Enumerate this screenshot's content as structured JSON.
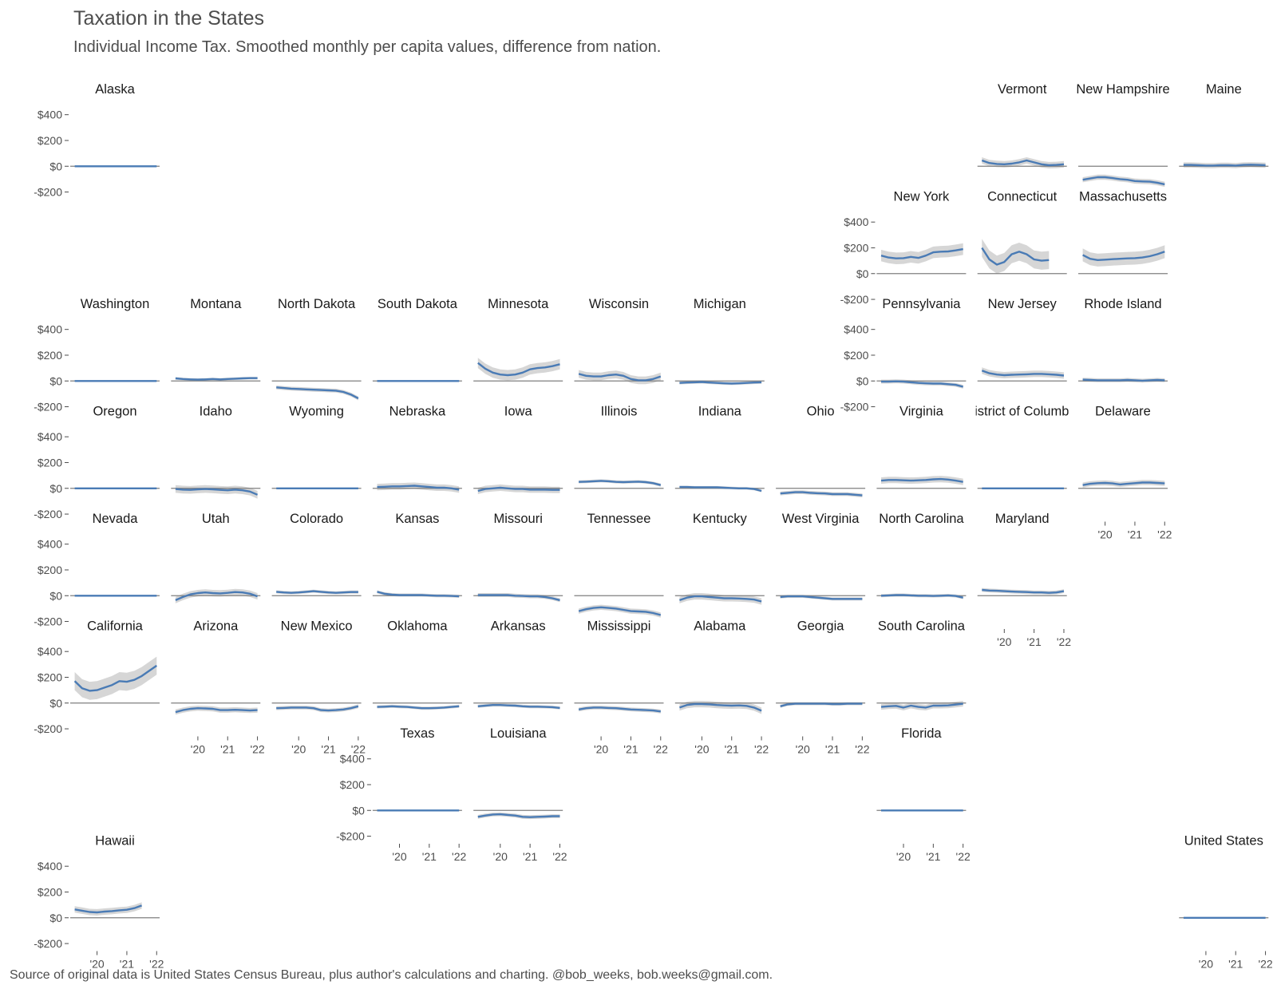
{
  "title": "Taxation in the States",
  "subtitle": "Individual Income Tax. Smoothed monthly per capita values, difference from nation.",
  "caption": "Source of original data is United States Census Bureau, plus author's calculations and charting. @bob_weeks, bob.weeks@gmail.com.",
  "colors": {
    "line": "#4a7bb5",
    "ribbon": "#cfcfcf",
    "zero": "#7f7f7f",
    "text": "#4d4d4d"
  },
  "chart_data": {
    "type": "line",
    "layout": "state-grid small multiples",
    "y_ticks": [
      400,
      200,
      0,
      -200
    ],
    "y_tick_labels": [
      "$400",
      "$200",
      "$0",
      "-$200"
    ],
    "ylim": [
      -240,
      460
    ],
    "x_ticks": [
      2020,
      2021,
      2022
    ],
    "x_tick_labels": [
      "'20",
      "'21",
      "'22"
    ],
    "xlim": [
      2019.1,
      2022.1
    ],
    "x": [
      2019.25,
      2019.5,
      2019.75,
      2020,
      2020.25,
      2020.5,
      2020.75,
      2021,
      2021.25,
      2021.5,
      2021.75,
      2022
    ],
    "series": [
      {
        "name": "Alaska",
        "row": 0,
        "col": 0,
        "y_axis": true,
        "x_axis": false,
        "values": [
          0,
          0,
          0,
          0,
          0,
          0,
          0,
          0,
          0,
          0,
          0,
          0
        ],
        "band": 0
      },
      {
        "name": "Vermont",
        "row": 0,
        "col": 9,
        "y_axis": false,
        "x_axis": false,
        "values": [
          45,
          25,
          18,
          15,
          20,
          30,
          45,
          30,
          15,
          8,
          10,
          15
        ],
        "band": 25
      },
      {
        "name": "New Hampshire",
        "row": 0,
        "col": 10,
        "y_axis": false,
        "x_axis": false,
        "values": [
          -105,
          -95,
          -85,
          -85,
          -92,
          -100,
          -105,
          -115,
          -118,
          -120,
          -128,
          -140
        ],
        "band": 20
      },
      {
        "name": "Maine",
        "row": 0,
        "col": 11,
        "y_axis": false,
        "x_axis": false,
        "values": [
          10,
          10,
          8,
          5,
          5,
          8,
          8,
          5,
          10,
          12,
          10,
          8
        ],
        "band": 20
      },
      {
        "name": "New York",
        "row": 1,
        "col": 8,
        "y_axis": true,
        "x_axis": false,
        "values": [
          140,
          125,
          118,
          120,
          130,
          122,
          140,
          165,
          170,
          172,
          180,
          190
        ],
        "band": 45
      },
      {
        "name": "Connecticut",
        "row": 1,
        "col": 9,
        "y_axis": false,
        "x_axis": false,
        "values": [
          200,
          110,
          70,
          90,
          150,
          170,
          150,
          110,
          100,
          105,
          null,
          null
        ],
        "band": 70
      },
      {
        "name": "Massachusetts",
        "row": 1,
        "col": 10,
        "y_axis": false,
        "x_axis": false,
        "values": [
          145,
          115,
          105,
          108,
          112,
          115,
          118,
          120,
          125,
          135,
          150,
          170
        ],
        "band": 50
      },
      {
        "name": "Washington",
        "row": 2,
        "col": 0,
        "y_axis": true,
        "x_axis": false,
        "values": [
          0,
          0,
          0,
          0,
          0,
          0,
          0,
          0,
          0,
          0,
          0,
          0
        ],
        "band": 0
      },
      {
        "name": "Montana",
        "row": 2,
        "col": 1,
        "y_axis": false,
        "x_axis": false,
        "values": [
          20,
          15,
          12,
          10,
          12,
          15,
          12,
          15,
          18,
          20,
          22,
          22
        ],
        "band": 10
      },
      {
        "name": "North Dakota",
        "row": 2,
        "col": 2,
        "y_axis": false,
        "x_axis": false,
        "values": [
          -50,
          -55,
          -60,
          -62,
          -65,
          -68,
          -70,
          -73,
          -75,
          -85,
          -105,
          -135
        ],
        "band": 15
      },
      {
        "name": "South Dakota",
        "row": 2,
        "col": 3,
        "y_axis": false,
        "x_axis": false,
        "values": [
          0,
          0,
          0,
          0,
          0,
          0,
          0,
          0,
          0,
          0,
          0,
          0
        ],
        "band": 0
      },
      {
        "name": "Minnesota",
        "row": 2,
        "col": 4,
        "y_axis": false,
        "x_axis": false,
        "values": [
          140,
          95,
          65,
          50,
          45,
          50,
          65,
          90,
          100,
          105,
          115,
          130
        ],
        "band": 40
      },
      {
        "name": "Wisconsin",
        "row": 2,
        "col": 5,
        "y_axis": false,
        "x_axis": false,
        "values": [
          55,
          40,
          35,
          35,
          45,
          50,
          40,
          15,
          5,
          5,
          15,
          35
        ],
        "band": 30
      },
      {
        "name": "Michigan",
        "row": 2,
        "col": 6,
        "y_axis": false,
        "x_axis": false,
        "values": [
          -15,
          -12,
          -10,
          -8,
          -12,
          -15,
          -18,
          -20,
          -18,
          -15,
          -12,
          -10
        ],
        "band": 12
      },
      {
        "name": "Pennsylvania",
        "row": 2,
        "col": 8,
        "y_axis": true,
        "x_axis": false,
        "values": [
          -5,
          -5,
          -3,
          -5,
          -10,
          -15,
          -18,
          -20,
          -20,
          -25,
          -30,
          -45
        ],
        "band": 15
      },
      {
        "name": "New Jersey",
        "row": 2,
        "col": 9,
        "y_axis": false,
        "x_axis": false,
        "values": [
          80,
          60,
          50,
          45,
          48,
          50,
          52,
          55,
          55,
          52,
          48,
          42
        ],
        "band": 25
      },
      {
        "name": "Rhode Island",
        "row": 2,
        "col": 10,
        "y_axis": false,
        "x_axis": false,
        "values": [
          10,
          8,
          5,
          5,
          5,
          5,
          8,
          5,
          2,
          5,
          8,
          5
        ],
        "band": 15
      },
      {
        "name": "Oregon",
        "row": 3,
        "col": 0,
        "y_axis": true,
        "x_axis": false,
        "values": [
          0,
          0,
          0,
          0,
          0,
          0,
          0,
          0,
          0,
          0,
          0,
          0
        ],
        "band": 0
      },
      {
        "name": "Idaho",
        "row": 3,
        "col": 1,
        "y_axis": false,
        "x_axis": false,
        "values": [
          -5,
          -10,
          -12,
          -8,
          -5,
          -8,
          -12,
          -15,
          -10,
          -15,
          -25,
          -50
        ],
        "band": 30
      },
      {
        "name": "Wyoming",
        "row": 3,
        "col": 2,
        "y_axis": false,
        "x_axis": false,
        "values": [
          0,
          0,
          0,
          0,
          0,
          0,
          0,
          0,
          0,
          0,
          0,
          0
        ],
        "band": 0
      },
      {
        "name": "Nebraska",
        "row": 3,
        "col": 3,
        "y_axis": false,
        "x_axis": false,
        "values": [
          10,
          12,
          15,
          15,
          18,
          20,
          15,
          10,
          5,
          5,
          0,
          -10
        ],
        "band": 25
      },
      {
        "name": "Iowa",
        "row": 3,
        "col": 4,
        "y_axis": false,
        "x_axis": false,
        "values": [
          -20,
          -5,
          0,
          5,
          0,
          -5,
          -5,
          -10,
          -10,
          -10,
          -12,
          -12
        ],
        "band": 25
      },
      {
        "name": "Illinois",
        "row": 3,
        "col": 5,
        "y_axis": false,
        "x_axis": false,
        "values": [
          50,
          52,
          55,
          58,
          55,
          50,
          48,
          50,
          52,
          48,
          40,
          25
        ],
        "band": 12
      },
      {
        "name": "Indiana",
        "row": 3,
        "col": 6,
        "y_axis": false,
        "x_axis": false,
        "values": [
          10,
          10,
          8,
          8,
          8,
          8,
          5,
          2,
          0,
          0,
          -5,
          -20
        ],
        "band": 10
      },
      {
        "name": "Ohio",
        "row": 3,
        "col": 7,
        "y_axis": false,
        "x_axis": false,
        "values": [
          -40,
          -35,
          -30,
          -30,
          -35,
          -38,
          -40,
          -45,
          -45,
          -45,
          -50,
          -55
        ],
        "band": 15
      },
      {
        "name": "Virginia",
        "row": 3,
        "col": 8,
        "y_axis": false,
        "x_axis": false,
        "values": [
          60,
          65,
          65,
          62,
          60,
          62,
          65,
          70,
          72,
          68,
          60,
          50
        ],
        "band": 25
      },
      {
        "name": "District of Columbia",
        "row": 3,
        "col": 9,
        "y_axis": false,
        "x_axis": false,
        "values": [
          0,
          0,
          0,
          0,
          0,
          0,
          0,
          0,
          0,
          0,
          0,
          0
        ],
        "band": 0
      },
      {
        "name": "Delaware",
        "row": 3,
        "col": 10,
        "y_axis": false,
        "x_axis": true,
        "values": [
          25,
          35,
          40,
          42,
          38,
          30,
          35,
          40,
          45,
          45,
          42,
          38
        ],
        "band": 20
      },
      {
        "name": "Nevada",
        "row": 4,
        "col": 0,
        "y_axis": true,
        "x_axis": false,
        "values": [
          0,
          0,
          0,
          0,
          0,
          0,
          0,
          0,
          0,
          0,
          0,
          0
        ],
        "band": 0
      },
      {
        "name": "Utah",
        "row": 4,
        "col": 1,
        "y_axis": false,
        "x_axis": false,
        "values": [
          -35,
          -10,
          10,
          20,
          25,
          20,
          18,
          22,
          28,
          25,
          15,
          -5
        ],
        "band": 25
      },
      {
        "name": "Colorado",
        "row": 4,
        "col": 2,
        "y_axis": false,
        "x_axis": false,
        "values": [
          30,
          25,
          22,
          25,
          30,
          35,
          30,
          25,
          22,
          25,
          28,
          28
        ],
        "band": 12
      },
      {
        "name": "Kansas",
        "row": 4,
        "col": 3,
        "y_axis": false,
        "x_axis": false,
        "values": [
          30,
          15,
          8,
          5,
          5,
          5,
          5,
          2,
          0,
          0,
          -2,
          -5
        ],
        "band": 12
      },
      {
        "name": "Missouri",
        "row": 4,
        "col": 4,
        "y_axis": false,
        "x_axis": false,
        "values": [
          5,
          5,
          5,
          5,
          5,
          0,
          -2,
          -5,
          -5,
          -10,
          -20,
          -35
        ],
        "band": 15
      },
      {
        "name": "Tennessee",
        "row": 4,
        "col": 5,
        "y_axis": false,
        "x_axis": false,
        "values": [
          -120,
          -105,
          -95,
          -90,
          -95,
          -100,
          -110,
          -120,
          -122,
          -125,
          -135,
          -150
        ],
        "band": 20
      },
      {
        "name": "Kentucky",
        "row": 4,
        "col": 6,
        "y_axis": false,
        "x_axis": false,
        "values": [
          -35,
          -15,
          -5,
          -5,
          -10,
          -15,
          -20,
          -20,
          -22,
          -25,
          -30,
          -45
        ],
        "band": 25
      },
      {
        "name": "West Virginia",
        "row": 4,
        "col": 7,
        "y_axis": false,
        "x_axis": false,
        "values": [
          -10,
          -5,
          -5,
          -5,
          -10,
          -15,
          -20,
          -25,
          -25,
          -25,
          -25,
          -25
        ],
        "band": 12
      },
      {
        "name": "North Carolina",
        "row": 4,
        "col": 8,
        "y_axis": false,
        "x_axis": false,
        "values": [
          0,
          2,
          5,
          5,
          2,
          0,
          0,
          -2,
          0,
          2,
          -2,
          -15
        ],
        "band": 12
      },
      {
        "name": "Maryland",
        "row": 4,
        "col": 9,
        "y_axis": false,
        "x_axis": true,
        "values": [
          45,
          40,
          38,
          35,
          32,
          30,
          28,
          25,
          25,
          22,
          25,
          35
        ],
        "band": 15
      },
      {
        "name": "California",
        "row": 5,
        "col": 0,
        "y_axis": true,
        "x_axis": false,
        "values": [
          170,
          115,
          95,
          100,
          120,
          140,
          170,
          165,
          180,
          210,
          250,
          290
        ],
        "band": 70
      },
      {
        "name": "Arizona",
        "row": 5,
        "col": 1,
        "y_axis": false,
        "x_axis": true,
        "values": [
          -70,
          -55,
          -45,
          -40,
          -42,
          -45,
          -55,
          -55,
          -52,
          -55,
          -58,
          -55
        ],
        "band": 20
      },
      {
        "name": "New Mexico",
        "row": 5,
        "col": 2,
        "y_axis": false,
        "x_axis": true,
        "values": [
          -40,
          -38,
          -35,
          -35,
          -35,
          -40,
          -55,
          -58,
          -55,
          -50,
          -40,
          -25
        ],
        "band": 15
      },
      {
        "name": "Oklahoma",
        "row": 5,
        "col": 3,
        "y_axis": false,
        "x_axis": false,
        "values": [
          -30,
          -28,
          -25,
          -28,
          -30,
          -35,
          -40,
          -40,
          -38,
          -35,
          -30,
          -25
        ],
        "band": 12
      },
      {
        "name": "Arkansas",
        "row": 5,
        "col": 4,
        "y_axis": false,
        "x_axis": false,
        "values": [
          -25,
          -20,
          -15,
          -15,
          -18,
          -20,
          -25,
          -28,
          -28,
          -30,
          -32,
          -38
        ],
        "band": 12
      },
      {
        "name": "Mississippi",
        "row": 5,
        "col": 5,
        "y_axis": false,
        "x_axis": true,
        "values": [
          -50,
          -40,
          -35,
          -35,
          -38,
          -40,
          -45,
          -50,
          -52,
          -55,
          -58,
          -65
        ],
        "band": 15
      },
      {
        "name": "Alabama",
        "row": 5,
        "col": 6,
        "y_axis": false,
        "x_axis": true,
        "values": [
          -35,
          -15,
          -8,
          -8,
          -10,
          -15,
          -18,
          -20,
          -18,
          -22,
          -35,
          -60
        ],
        "band": 25
      },
      {
        "name": "Georgia",
        "row": 5,
        "col": 7,
        "y_axis": false,
        "x_axis": true,
        "values": [
          -25,
          -10,
          -5,
          -5,
          -5,
          -5,
          -5,
          -8,
          -8,
          -5,
          -5,
          -5
        ],
        "band": 12
      },
      {
        "name": "South Carolina",
        "row": 5,
        "col": 8,
        "y_axis": false,
        "x_axis": false,
        "values": [
          -30,
          -25,
          -22,
          -35,
          -20,
          -30,
          -35,
          -20,
          -20,
          -18,
          -12,
          -5
        ],
        "band": 22
      },
      {
        "name": "Texas",
        "row": 6,
        "col": 3,
        "y_axis": true,
        "x_axis": true,
        "values": [
          0,
          0,
          0,
          0,
          0,
          0,
          0,
          0,
          0,
          0,
          0,
          0
        ],
        "band": 0
      },
      {
        "name": "Louisiana",
        "row": 6,
        "col": 4,
        "y_axis": false,
        "x_axis": true,
        "values": [
          -50,
          -40,
          -32,
          -30,
          -35,
          -40,
          -50,
          -52,
          -50,
          -48,
          -45,
          -45
        ],
        "band": 15
      },
      {
        "name": "Florida",
        "row": 6,
        "col": 8,
        "y_axis": false,
        "x_axis": true,
        "values": [
          0,
          0,
          0,
          0,
          0,
          0,
          0,
          0,
          0,
          0,
          0,
          0
        ],
        "band": 0
      },
      {
        "name": "Hawaii",
        "row": 7,
        "col": 0,
        "y_axis": true,
        "x_axis": true,
        "values": [
          65,
          55,
          45,
          42,
          48,
          52,
          58,
          62,
          75,
          95,
          null,
          null
        ],
        "band": 25
      },
      {
        "name": "United States",
        "row": 7,
        "col": 11,
        "y_axis": false,
        "x_axis": true,
        "values": [
          0,
          0,
          0,
          0,
          0,
          0,
          0,
          0,
          0,
          0,
          0,
          0
        ],
        "band": 0
      }
    ]
  }
}
